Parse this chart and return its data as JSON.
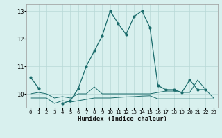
{
  "xlabel": "Humidex (Indice chaleur)",
  "x": [
    0,
    1,
    2,
    3,
    4,
    5,
    6,
    7,
    8,
    9,
    10,
    11,
    12,
    13,
    14,
    15,
    16,
    17,
    18,
    19,
    20,
    21,
    22,
    23
  ],
  "main_y": [
    10.6,
    10.2,
    null,
    null,
    9.65,
    9.75,
    10.2,
    11.0,
    11.55,
    12.1,
    13.0,
    12.55,
    12.15,
    12.8,
    13.0,
    12.4,
    10.3,
    10.15,
    10.15,
    10.05,
    10.5,
    10.15,
    10.15,
    null
  ],
  "flat_top_y": [
    10.0,
    10.05,
    10.0,
    9.85,
    9.9,
    9.85,
    10.0,
    10.0,
    10.25,
    10.0,
    10.0,
    10.0,
    10.0,
    10.0,
    10.0,
    10.0,
    10.05,
    10.1,
    10.1,
    10.05,
    10.05,
    10.5,
    10.15,
    9.85
  ],
  "flat_bot_y": [
    9.85,
    9.85,
    9.85,
    9.65,
    9.75,
    9.7,
    9.75,
    9.8,
    9.85,
    9.85,
    9.85,
    9.87,
    9.89,
    9.9,
    9.92,
    9.93,
    9.82,
    9.82,
    9.82,
    9.82,
    9.82,
    9.82,
    9.82,
    9.82
  ],
  "ylim": [
    9.5,
    13.25
  ],
  "xlim": [
    -0.5,
    23.5
  ],
  "yticks": [
    10,
    11,
    12,
    13
  ],
  "xticks": [
    0,
    1,
    2,
    3,
    4,
    5,
    6,
    7,
    8,
    9,
    10,
    11,
    12,
    13,
    14,
    15,
    16,
    17,
    18,
    19,
    20,
    21,
    22,
    23
  ],
  "bg_color": "#d8f0ee",
  "line_color": "#1a6b6b",
  "grid_color": "#b8d8d6",
  "tick_fontsize": 5.5,
  "xlabel_fontsize": 6.5
}
